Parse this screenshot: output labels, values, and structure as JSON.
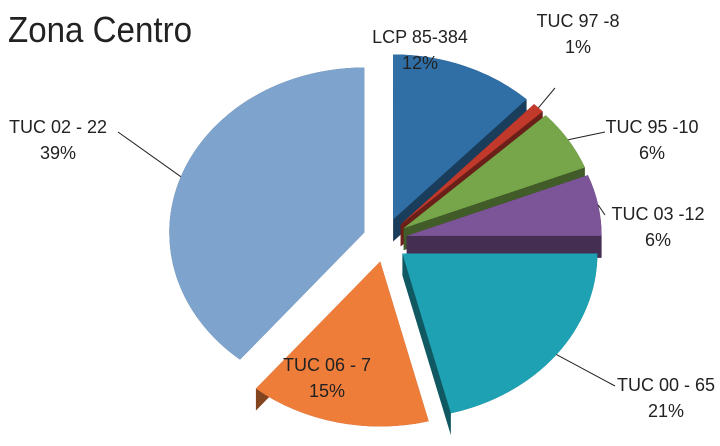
{
  "chart_data": {
    "type": "pie",
    "title": "Zona Centro",
    "categories": [
      "LCP 85-384",
      "TUC 97 -8",
      "TUC 95 -10",
      "TUC 03 -12",
      "TUC 00  - 65",
      "TUC 06  - 7",
      "TUC 02  - 22"
    ],
    "values": [
      12,
      1,
      6,
      6,
      21,
      15,
      39
    ],
    "value_labels": [
      "12%",
      "1%",
      "6%",
      "6%",
      "21%",
      "15%",
      "39%"
    ],
    "colors": [
      "#2f6fa6",
      "#c0392b",
      "#77a64a",
      "#7b5597",
      "#1ea2b3",
      "#ef7d3a",
      "#7ea3cd"
    ]
  }
}
